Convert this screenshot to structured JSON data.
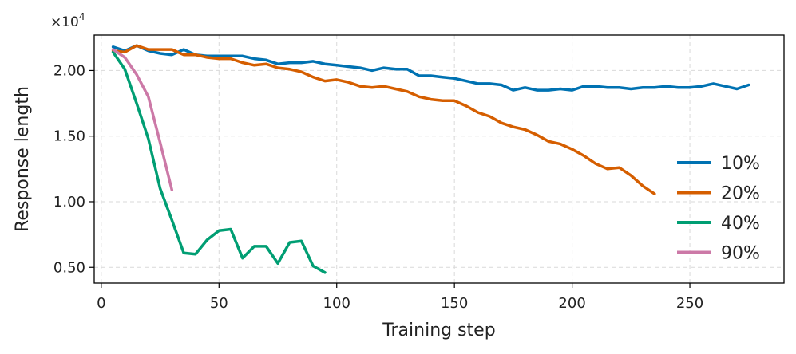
{
  "chart_data": {
    "type": "line",
    "title": "",
    "xlabel": "Training step",
    "ylabel": "Response length",
    "y_multiplier_label": "×10",
    "y_multiplier_exp": "4",
    "xlim": [
      -3,
      290
    ],
    "ylim": [
      0.38,
      2.27
    ],
    "x_ticks": [
      0,
      50,
      100,
      150,
      200,
      250
    ],
    "x_tick_labels": [
      "0",
      "50",
      "100",
      "150",
      "200",
      "250"
    ],
    "y_ticks": [
      0.5,
      1.0,
      1.5,
      2.0
    ],
    "y_tick_labels": [
      "0.50",
      "1.00",
      "1.50",
      "2.00"
    ],
    "grid": true,
    "legend_position": "lower-right",
    "series": [
      {
        "name": "10%",
        "color": "#0072b2",
        "x": [
          5,
          10,
          15,
          20,
          25,
          30,
          35,
          40,
          45,
          50,
          55,
          60,
          65,
          70,
          75,
          80,
          85,
          90,
          95,
          100,
          105,
          110,
          115,
          120,
          125,
          130,
          135,
          140,
          145,
          150,
          155,
          160,
          165,
          170,
          175,
          180,
          185,
          190,
          195,
          200,
          205,
          210,
          215,
          220,
          225,
          230,
          235,
          240,
          245,
          250,
          255,
          260,
          265,
          270,
          275
        ],
        "y": [
          2.18,
          2.15,
          2.19,
          2.15,
          2.13,
          2.12,
          2.16,
          2.12,
          2.11,
          2.11,
          2.11,
          2.11,
          2.09,
          2.08,
          2.05,
          2.06,
          2.06,
          2.07,
          2.05,
          2.04,
          2.03,
          2.02,
          2.0,
          2.02,
          2.01,
          2.01,
          1.96,
          1.96,
          1.95,
          1.94,
          1.92,
          1.9,
          1.9,
          1.89,
          1.85,
          1.87,
          1.85,
          1.85,
          1.86,
          1.85,
          1.88,
          1.88,
          1.87,
          1.87,
          1.86,
          1.87,
          1.87,
          1.88,
          1.87,
          1.87,
          1.88,
          1.9,
          1.88,
          1.86,
          1.89
        ]
      },
      {
        "name": "20%",
        "color": "#d55e00",
        "x": [
          5,
          10,
          15,
          20,
          25,
          30,
          35,
          40,
          45,
          50,
          55,
          60,
          65,
          70,
          75,
          80,
          85,
          90,
          95,
          100,
          105,
          110,
          115,
          120,
          125,
          130,
          135,
          140,
          145,
          150,
          155,
          160,
          165,
          170,
          175,
          180,
          185,
          190,
          195,
          200,
          205,
          210,
          215,
          220,
          225,
          230,
          235
        ],
        "y": [
          2.15,
          2.14,
          2.19,
          2.16,
          2.16,
          2.16,
          2.12,
          2.12,
          2.1,
          2.09,
          2.09,
          2.06,
          2.04,
          2.05,
          2.02,
          2.01,
          1.99,
          1.95,
          1.92,
          1.93,
          1.91,
          1.88,
          1.87,
          1.88,
          1.86,
          1.84,
          1.8,
          1.78,
          1.77,
          1.77,
          1.73,
          1.68,
          1.65,
          1.6,
          1.57,
          1.55,
          1.51,
          1.46,
          1.44,
          1.4,
          1.35,
          1.29,
          1.25,
          1.26,
          1.2,
          1.12,
          1.06
        ]
      },
      {
        "name": "40%",
        "color": "#009e73",
        "x": [
          5,
          10,
          15,
          20,
          25,
          30,
          35,
          40,
          45,
          50,
          55,
          60,
          65,
          70,
          75,
          80,
          85,
          90,
          95
        ],
        "y": [
          2.14,
          2.01,
          1.75,
          1.48,
          1.1,
          0.86,
          0.61,
          0.6,
          0.71,
          0.78,
          0.79,
          0.57,
          0.66,
          0.66,
          0.53,
          0.69,
          0.7,
          0.51,
          0.46
        ]
      },
      {
        "name": "90%",
        "color": "#cc79a7",
        "x": [
          5,
          10,
          15,
          20,
          25,
          30
        ],
        "y": [
          2.16,
          2.1,
          1.97,
          1.8,
          1.45,
          1.09
        ]
      }
    ]
  }
}
